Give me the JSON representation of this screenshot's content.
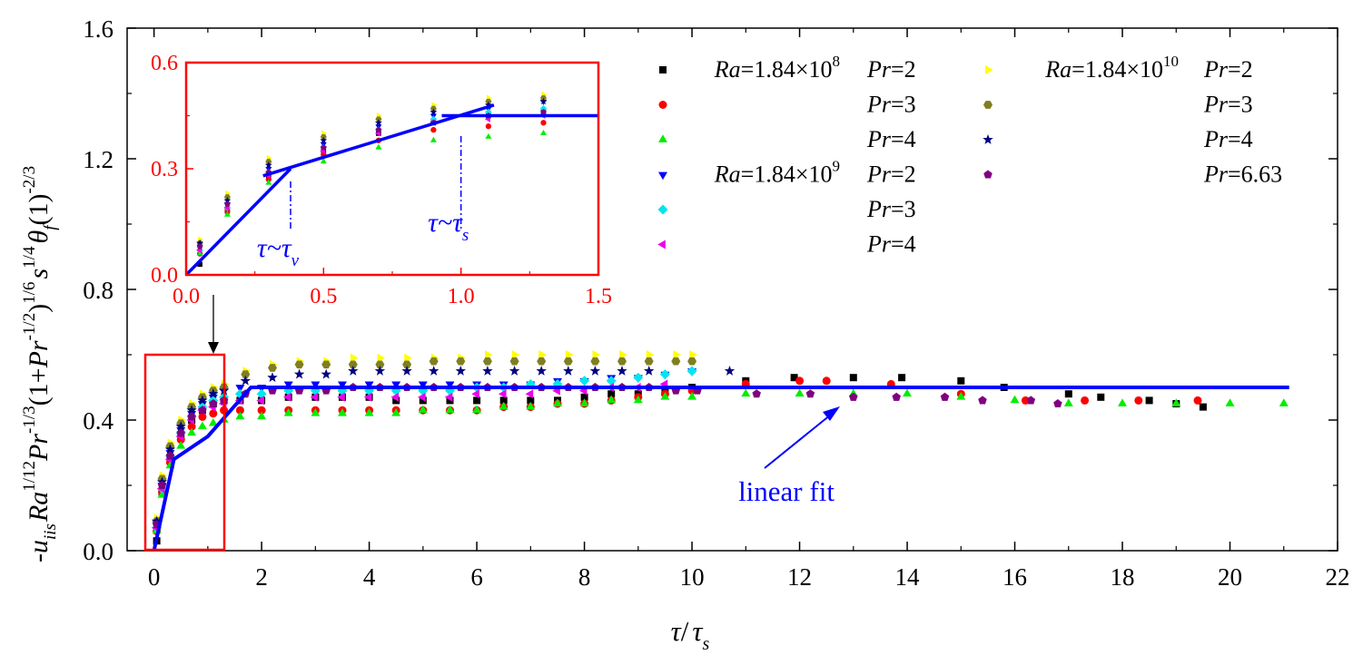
{
  "chart_data": {
    "type": "scatter",
    "x_ticks": [
      "0",
      "2",
      "4",
      "6",
      "8",
      "10",
      "12",
      "14",
      "16",
      "18",
      "20",
      "22"
    ],
    "y_ticks": [
      "0.0",
      "0.4",
      "0.8",
      "1.2",
      "1.6"
    ],
    "xlim": [
      -0.5,
      22
    ],
    "ylim": [
      0,
      1.6
    ],
    "grid": false,
    "legend_placement": "top-right",
    "xlabel": {
      "tau": "τ",
      "slash": "/",
      "tau2": "τ",
      "sub": "s"
    },
    "ylabel": {
      "minus_u": "-u",
      "u_sub": "iis",
      "ra": "Ra",
      "ra_sup": "1/12",
      "pr": "Pr",
      "pr_sup": "-1/3",
      "paren": "(1+",
      "pr2": "Pr",
      "pr2_sup": "-1/2",
      "close": ")",
      "close_sup": "1/6",
      "s": "s",
      "s_sup": "1/4",
      "theta": "θ",
      "theta_sub": "f",
      "one": "(1)",
      "final_sup": "-2/3"
    },
    "legend": [
      {
        "group": "Ra=1.84×10",
        "exp": "8",
        "pr": "Pr",
        "val": "=2",
        "color": "#000000",
        "marker": "square"
      },
      {
        "group": "",
        "exp": "",
        "pr": "Pr",
        "val": "=3",
        "color": "#ff0000",
        "marker": "circle"
      },
      {
        "group": "",
        "exp": "",
        "pr": "Pr",
        "val": "=4",
        "color": "#00ee00",
        "marker": "triangle-up"
      },
      {
        "group": "Ra=1.84×10",
        "exp": "9",
        "pr": "Pr",
        "val": "=2",
        "color": "#0000ff",
        "marker": "triangle-down"
      },
      {
        "group": "",
        "exp": "",
        "pr": "Pr",
        "val": "=3",
        "color": "#00e5ee",
        "marker": "diamond"
      },
      {
        "group": "",
        "exp": "",
        "pr": "Pr",
        "val": "=4",
        "color": "#ee00ee",
        "marker": "triangle-left"
      },
      {
        "group": "Ra=1.84×10",
        "exp": "10",
        "pr": "Pr",
        "val": "=2",
        "color": "#ffff00",
        "marker": "triangle-right"
      },
      {
        "group": "",
        "exp": "",
        "pr": "Pr",
        "val": "=3",
        "color": "#7f7f20",
        "marker": "hexagon"
      },
      {
        "group": "",
        "exp": "",
        "pr": "Pr",
        "val": "=4",
        "color": "#000080",
        "marker": "star"
      },
      {
        "group": "",
        "exp": "",
        "pr": "Pr",
        "val": "=6.63",
        "color": "#800080",
        "marker": "pentagon"
      }
    ],
    "series": [
      {
        "x": [
          0.05,
          0.15,
          0.3,
          0.5,
          0.7,
          0.9,
          1.1,
          1.3,
          1.6,
          2.0,
          2.5,
          3.0,
          3.5,
          4.0,
          4.5,
          5.0,
          5.5,
          6.0,
          6.5,
          7.0,
          7.5,
          8.0,
          8.5,
          9.0,
          9.5,
          10.0,
          11.0,
          11.9,
          13.0,
          13.9,
          15.0,
          15.8,
          17.0,
          17.6,
          18.5,
          19.0,
          19.5
        ],
        "y": [
          0.03,
          0.18,
          0.28,
          0.35,
          0.4,
          0.43,
          0.45,
          0.46,
          0.46,
          0.46,
          0.47,
          0.47,
          0.47,
          0.47,
          0.46,
          0.46,
          0.46,
          0.46,
          0.46,
          0.46,
          0.46,
          0.47,
          0.48,
          0.48,
          0.49,
          0.5,
          0.52,
          0.53,
          0.53,
          0.53,
          0.52,
          0.5,
          0.48,
          0.47,
          0.46,
          0.45,
          0.44
        ]
      },
      {
        "x": [
          0.05,
          0.15,
          0.3,
          0.5,
          0.7,
          0.9,
          1.1,
          1.3,
          1.6,
          2.0,
          2.5,
          3.0,
          3.5,
          4.0,
          4.5,
          5.0,
          5.5,
          6.0,
          6.5,
          7.0,
          7.5,
          8.0,
          8.5,
          9.0,
          9.5,
          10.0,
          11.0,
          12.0,
          12.5,
          13.7,
          15.0,
          16.2,
          17.3,
          18.3,
          19.4
        ],
        "y": [
          0.06,
          0.18,
          0.27,
          0.34,
          0.38,
          0.41,
          0.42,
          0.43,
          0.43,
          0.43,
          0.43,
          0.43,
          0.43,
          0.43,
          0.43,
          0.43,
          0.43,
          0.43,
          0.44,
          0.44,
          0.45,
          0.45,
          0.46,
          0.47,
          0.48,
          0.49,
          0.51,
          0.52,
          0.52,
          0.51,
          0.48,
          0.46,
          0.46,
          0.46,
          0.46
        ]
      },
      {
        "x": [
          0.05,
          0.15,
          0.3,
          0.5,
          0.7,
          0.9,
          1.1,
          1.3,
          1.6,
          2.0,
          2.5,
          3.0,
          3.5,
          4.0,
          4.5,
          5.0,
          5.5,
          6.0,
          6.5,
          7.0,
          7.5,
          8.0,
          8.5,
          9.0,
          9.5,
          10.0,
          11.0,
          12.0,
          13.0,
          14.0,
          15.0,
          16.0,
          17.0,
          18.0,
          19.0,
          20.0,
          21.0
        ],
        "y": [
          0.06,
          0.17,
          0.26,
          0.32,
          0.36,
          0.38,
          0.39,
          0.4,
          0.41,
          0.41,
          0.42,
          0.42,
          0.42,
          0.42,
          0.42,
          0.43,
          0.43,
          0.43,
          0.44,
          0.44,
          0.45,
          0.45,
          0.46,
          0.46,
          0.47,
          0.47,
          0.48,
          0.48,
          0.48,
          0.48,
          0.47,
          0.46,
          0.45,
          0.45,
          0.45,
          0.45,
          0.45
        ]
      },
      {
        "x": [
          0.05,
          0.15,
          0.3,
          0.5,
          0.7,
          0.9,
          1.1,
          1.3,
          1.6,
          2.0,
          2.5,
          3.0,
          3.5,
          4.0,
          4.5,
          5.0,
          5.5,
          6.0,
          6.5,
          7.0,
          7.5,
          8.0,
          8.5,
          9.0,
          9.5,
          10.0
        ],
        "y": [
          0.08,
          0.2,
          0.3,
          0.37,
          0.42,
          0.45,
          0.47,
          0.49,
          0.5,
          0.5,
          0.51,
          0.51,
          0.51,
          0.51,
          0.51,
          0.51,
          0.51,
          0.51,
          0.51,
          0.51,
          0.52,
          0.52,
          0.53,
          0.53,
          0.54,
          0.55
        ]
      },
      {
        "x": [
          0.05,
          0.15,
          0.3,
          0.5,
          0.7,
          0.9,
          1.1,
          1.3,
          1.6,
          2.0,
          2.5,
          3.0,
          3.5,
          4.0,
          4.5,
          5.0,
          5.5,
          6.0,
          6.5,
          7.0,
          7.5,
          8.0,
          8.5,
          9.0,
          9.5,
          10.0
        ],
        "y": [
          0.07,
          0.19,
          0.29,
          0.36,
          0.41,
          0.44,
          0.46,
          0.47,
          0.48,
          0.48,
          0.49,
          0.49,
          0.49,
          0.49,
          0.49,
          0.49,
          0.49,
          0.5,
          0.5,
          0.51,
          0.51,
          0.52,
          0.52,
          0.53,
          0.54,
          0.55
        ]
      },
      {
        "x": [
          0.05,
          0.15,
          0.3,
          0.5,
          0.7,
          0.9,
          1.1,
          1.3,
          1.6,
          2.0,
          2.5,
          3.0,
          3.5,
          4.0,
          4.5,
          5.0,
          5.5,
          6.0,
          6.5,
          7.0,
          7.5,
          8.0,
          8.5,
          9.0,
          9.5
        ],
        "y": [
          0.07,
          0.19,
          0.28,
          0.35,
          0.4,
          0.43,
          0.44,
          0.45,
          0.46,
          0.46,
          0.47,
          0.47,
          0.47,
          0.47,
          0.47,
          0.47,
          0.47,
          0.48,
          0.48,
          0.48,
          0.49,
          0.49,
          0.5,
          0.5,
          0.51
        ]
      },
      {
        "x": [
          0.05,
          0.15,
          0.3,
          0.5,
          0.7,
          0.9,
          1.1,
          1.3,
          1.7,
          2.2,
          2.7,
          3.2,
          3.7,
          4.2,
          4.7,
          5.2,
          5.7,
          6.2,
          6.7,
          7.2,
          7.7,
          8.2,
          8.7,
          9.2,
          9.7,
          10.0
        ],
        "y": [
          0.1,
          0.23,
          0.33,
          0.4,
          0.45,
          0.48,
          0.5,
          0.51,
          0.55,
          0.57,
          0.58,
          0.58,
          0.59,
          0.59,
          0.59,
          0.59,
          0.59,
          0.6,
          0.6,
          0.6,
          0.6,
          0.6,
          0.6,
          0.6,
          0.6,
          0.6
        ]
      },
      {
        "x": [
          0.05,
          0.15,
          0.3,
          0.5,
          0.7,
          0.9,
          1.1,
          1.3,
          1.7,
          2.2,
          2.7,
          3.2,
          3.7,
          4.2,
          4.7,
          5.2,
          5.7,
          6.2,
          6.7,
          7.2,
          7.7,
          8.2,
          8.7,
          9.2,
          9.7,
          10.0
        ],
        "y": [
          0.09,
          0.22,
          0.32,
          0.39,
          0.44,
          0.47,
          0.49,
          0.5,
          0.54,
          0.56,
          0.57,
          0.57,
          0.57,
          0.57,
          0.57,
          0.58,
          0.58,
          0.58,
          0.58,
          0.58,
          0.58,
          0.58,
          0.58,
          0.58,
          0.58,
          0.58
        ]
      },
      {
        "x": [
          0.05,
          0.15,
          0.3,
          0.5,
          0.7,
          0.9,
          1.1,
          1.3,
          1.7,
          2.2,
          2.7,
          3.2,
          3.7,
          4.2,
          4.7,
          5.2,
          5.7,
          6.2,
          6.7,
          7.2,
          7.7,
          8.2,
          8.7,
          9.2,
          10.7
        ],
        "y": [
          0.09,
          0.21,
          0.31,
          0.38,
          0.43,
          0.46,
          0.48,
          0.49,
          0.52,
          0.53,
          0.54,
          0.54,
          0.55,
          0.55,
          0.55,
          0.55,
          0.55,
          0.55,
          0.55,
          0.55,
          0.55,
          0.55,
          0.55,
          0.55,
          0.55
        ]
      },
      {
        "x": [
          0.05,
          0.15,
          0.3,
          0.5,
          0.7,
          0.9,
          1.1,
          1.3,
          1.7,
          2.2,
          2.7,
          3.2,
          3.7,
          4.2,
          4.7,
          5.2,
          5.7,
          6.2,
          6.7,
          7.2,
          7.7,
          8.2,
          8.7,
          9.2,
          9.7,
          10.1,
          11.2,
          12.2,
          13.0,
          13.8,
          14.7,
          15.4,
          16.3,
          16.8
        ],
        "y": [
          0.08,
          0.2,
          0.29,
          0.36,
          0.41,
          0.43,
          0.45,
          0.46,
          0.48,
          0.49,
          0.49,
          0.49,
          0.5,
          0.5,
          0.5,
          0.5,
          0.5,
          0.5,
          0.5,
          0.5,
          0.5,
          0.5,
          0.5,
          0.5,
          0.49,
          0.49,
          0.48,
          0.48,
          0.47,
          0.47,
          0.47,
          0.46,
          0.46,
          0.45
        ]
      }
    ],
    "fit_line": {
      "x": [
        0,
        0.37,
        1.0,
        1.8,
        21.1
      ],
      "y": [
        0,
        0.28,
        0.35,
        0.5,
        0.5
      ]
    },
    "fit_label": "linear fit",
    "inset": {
      "xlim": [
        0,
        1.5
      ],
      "ylim": [
        0,
        0.6
      ],
      "x_ticks": [
        "0.0",
        "0.5",
        "1.0",
        "1.5"
      ],
      "y_ticks": [
        "0.0",
        "0.3",
        "0.6"
      ],
      "fit_segments": [
        {
          "x": [
            0,
            0.38
          ],
          "y": [
            0,
            0.3
          ]
        },
        {
          "x": [
            0.28,
            1.12
          ],
          "y": [
            0.28,
            0.48
          ]
        },
        {
          "x": [
            0.93,
            1.5
          ],
          "y": [
            0.45,
            0.45
          ]
        }
      ],
      "annotations": [
        {
          "tau": "τ~",
          "tau2": "τ",
          "sub": "v",
          "x": 0.38
        },
        {
          "tau": "τ~",
          "tau2": "τ",
          "sub": "s",
          "x": 1.0
        }
      ]
    }
  }
}
